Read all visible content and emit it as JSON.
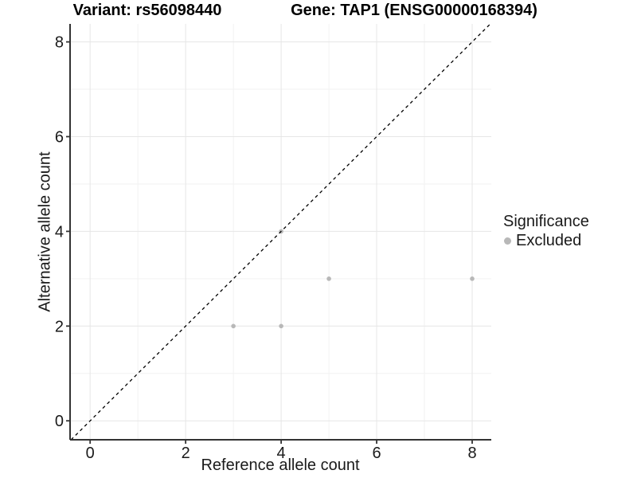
{
  "titles": {
    "left": "Variant: rs56098440",
    "right": "Gene: TAP1 (ENSG00000168394)"
  },
  "axes": {
    "x_label": "Reference allele count",
    "y_label": "Alternative allele count"
  },
  "legend": {
    "title": "Significance",
    "items": [
      {
        "label": "Excluded",
        "color": "#b8b8b8"
      }
    ]
  },
  "colors": {
    "axis_line": "#333333",
    "grid_major": "#e6e6e6",
    "grid_minor": "#f2f2f2",
    "tick_text": "#1a1a1a",
    "reference_line": "#000000",
    "point": "#b8b8b8",
    "background": "#ffffff"
  },
  "chart_data": {
    "type": "scatter",
    "title": "Variant: rs56098440 | Gene: TAP1 (ENSG00000168394)",
    "xlabel": "Reference allele count",
    "ylabel": "Alternative allele count",
    "xlim": [
      -0.42,
      8.4
    ],
    "ylim": [
      -0.4,
      8.38
    ],
    "x_breaks": [
      0,
      2,
      4,
      6,
      8
    ],
    "y_breaks": [
      0,
      2,
      4,
      6,
      8
    ],
    "x_minor_breaks": [
      1,
      3,
      5,
      7
    ],
    "y_minor_breaks": [
      1,
      3,
      5,
      7
    ],
    "grid": true,
    "legend_title": "Significance",
    "legend_position": "right",
    "series": [
      {
        "name": "Excluded",
        "color": "#b8b8b8",
        "points": [
          [
            3,
            2
          ],
          [
            4,
            2
          ],
          [
            4,
            4
          ],
          [
            5,
            3
          ],
          [
            8,
            3
          ]
        ]
      }
    ],
    "reference_line": {
      "type": "identity",
      "style": "dashed",
      "color": "#000000"
    }
  }
}
